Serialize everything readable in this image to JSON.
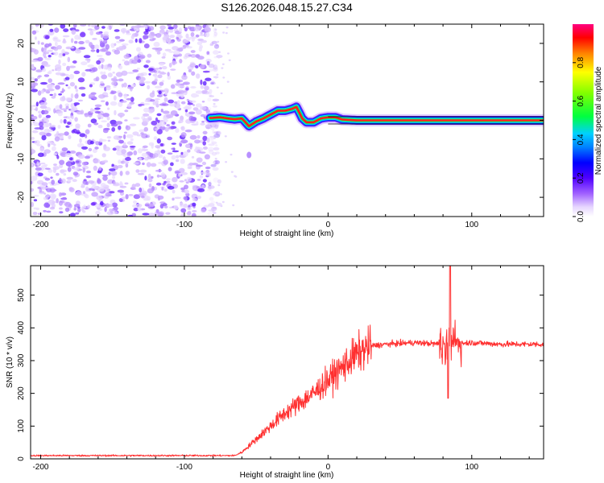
{
  "title": "S126.2026.048.15.27.C34",
  "chart_data": [
    {
      "type": "heatmap",
      "name": "spectrogram",
      "xlabel": "Height of straight line (km)",
      "ylabel": "Frequency (Hz)",
      "xlim": [
        -207,
        150
      ],
      "ylim": [
        -25,
        25
      ],
      "xticks": [
        -200,
        -100,
        0,
        100
      ],
      "yticks": [
        -20,
        -10,
        0,
        10,
        20
      ],
      "noise_region_x": [
        -207,
        -80
      ],
      "ridge": {
        "x": [
          -82,
          -75,
          -70,
          -65,
          -60,
          -55,
          -50,
          -45,
          -40,
          -35,
          -30,
          -25,
          -22,
          -18,
          -15,
          -10,
          -5,
          0,
          5,
          10,
          20,
          40,
          60,
          80,
          100,
          120,
          150
        ],
        "freq": [
          0.6,
          0.8,
          0.5,
          0.3,
          0.5,
          -1.5,
          -0.3,
          0.5,
          1.5,
          2.5,
          2.5,
          3.0,
          3.5,
          0.5,
          -0.5,
          -0.5,
          0.5,
          0.8,
          0.8,
          0.2,
          0.0,
          0.0,
          0.0,
          0.0,
          0.0,
          0.0,
          0.0
        ]
      }
    },
    {
      "type": "colorbar",
      "name": "amplitude-colorbar",
      "label": "Normalized spectral amplitude",
      "range": [
        0,
        1
      ],
      "ticks": [
        "0.0",
        "0.2",
        "0.4",
        "0.6",
        "0.8"
      ]
    },
    {
      "type": "line",
      "name": "snr",
      "xlabel": "Height of straight line (km)",
      "ylabel": "SNR (10 * v/v)",
      "xlim": [
        -207,
        150
      ],
      "ylim": [
        0,
        590
      ],
      "xticks": [
        -200,
        -100,
        0,
        100
      ],
      "yticks": [
        0,
        100,
        200,
        300,
        400,
        500
      ],
      "color": "#ff3030",
      "trend": {
        "x": [
          -207,
          -65,
          -60,
          -50,
          -40,
          -30,
          -20,
          -10,
          0,
          10,
          20,
          30,
          40,
          60,
          80,
          100,
          120,
          150
        ],
        "y": [
          10,
          10,
          20,
          60,
          100,
          140,
          170,
          200,
          240,
          280,
          320,
          345,
          350,
          355,
          350,
          355,
          350,
          350
        ]
      },
      "spike_x": 85,
      "spike_max": 590
    }
  ]
}
